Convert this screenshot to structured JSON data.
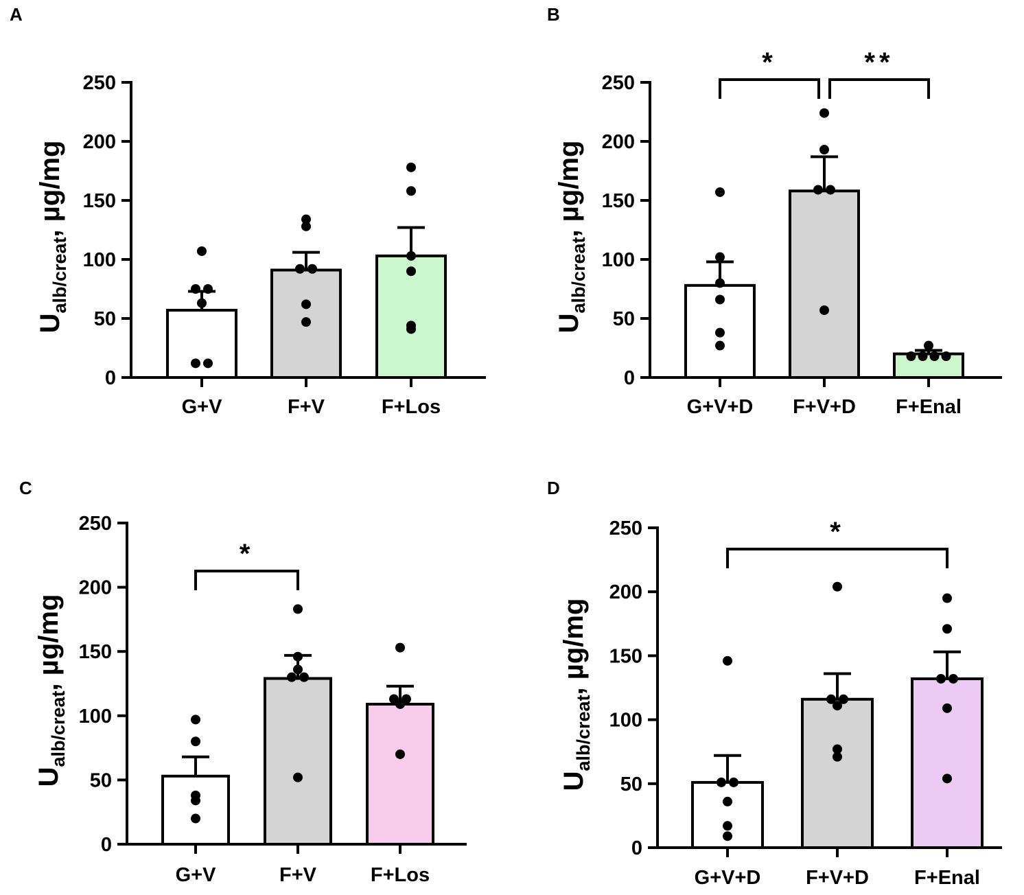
{
  "figure": {
    "panel_labels": [
      "A",
      "B",
      "C",
      "D"
    ]
  },
  "chart_data": [
    {
      "type": "bar",
      "panel": "A",
      "ylabel_main": "U",
      "ylabel_sub": "alb/creat",
      "ylabel_unit": ", µg/mg",
      "ylim": [
        0,
        250
      ],
      "yticks": [
        0,
        50,
        100,
        150,
        200,
        250
      ],
      "categories": [
        "G+V",
        "F+V",
        "F+Los"
      ],
      "values": [
        57,
        91,
        103
      ],
      "errors": [
        16,
        15,
        24
      ],
      "colors": [
        "#ffffff",
        "#d4d4d4",
        "#ccf7cc"
      ],
      "points": [
        [
          107,
          75,
          75,
          63,
          12,
          12
        ],
        [
          134,
          128,
          92,
          92,
          62,
          47
        ],
        [
          178,
          158,
          103,
          90,
          44,
          41
        ]
      ],
      "significance": []
    },
    {
      "type": "bar",
      "panel": "B",
      "ylabel_main": "U",
      "ylabel_sub": "alb/creat",
      "ylabel_unit": ", µg/mg",
      "ylim": [
        0,
        250
      ],
      "yticks": [
        0,
        50,
        100,
        150,
        200,
        250
      ],
      "categories": [
        "G+V+D",
        "F+V+D",
        "F+Enal"
      ],
      "values": [
        78,
        158,
        20
      ],
      "errors": [
        20,
        29,
        3
      ],
      "colors": [
        "#ffffff",
        "#d4d4d4",
        "#ccf7cc"
      ],
      "points": [
        [
          157,
          102,
          80,
          66,
          38,
          27
        ],
        [
          224,
          193,
          159,
          159,
          57
        ],
        [
          27,
          18,
          18,
          18,
          18
        ]
      ],
      "significance": [
        {
          "from": 0,
          "to": 1,
          "label": "*"
        },
        {
          "from": 1,
          "to": 2,
          "label": "**"
        }
      ]
    },
    {
      "type": "bar",
      "panel": "C",
      "ylabel_main": "U",
      "ylabel_sub": "alb/creat",
      "ylabel_unit": ", µg/mg",
      "ylim": [
        0,
        250
      ],
      "yticks": [
        0,
        50,
        100,
        150,
        200,
        250
      ],
      "categories": [
        "G+V",
        "F+V",
        "F+Los"
      ],
      "values": [
        53,
        129,
        109
      ],
      "errors": [
        15,
        18,
        14
      ],
      "colors": [
        "#ffffff",
        "#d4d4d4",
        "#f7cdeb"
      ],
      "points": [
        [
          97,
          80,
          38,
          34,
          20
        ],
        [
          183,
          146,
          136,
          130,
          130,
          52
        ],
        [
          153,
          113,
          113,
          109,
          70
        ]
      ],
      "significance": [
        {
          "from": 0,
          "to": 1,
          "label": "*"
        }
      ]
    },
    {
      "type": "bar",
      "panel": "D",
      "ylabel_main": "U",
      "ylabel_sub": "alb/creat",
      "ylabel_unit": ", µg/mg",
      "ylim": [
        0,
        250
      ],
      "yticks": [
        0,
        50,
        100,
        150,
        200,
        250
      ],
      "categories": [
        "G+V+D",
        "F+V+D",
        "F+Enal"
      ],
      "values": [
        51,
        116,
        132
      ],
      "errors": [
        21,
        20,
        21
      ],
      "colors": [
        "#ffffff",
        "#d4d4d4",
        "#ebcbf4"
      ],
      "points": [
        [
          146,
          51,
          51,
          36,
          17,
          9
        ],
        [
          204,
          116,
          116,
          111,
          77,
          71
        ],
        [
          195,
          171,
          132,
          132,
          109,
          54
        ]
      ],
      "significance": [
        {
          "from": 0,
          "to": 2,
          "label": "*"
        }
      ]
    }
  ]
}
